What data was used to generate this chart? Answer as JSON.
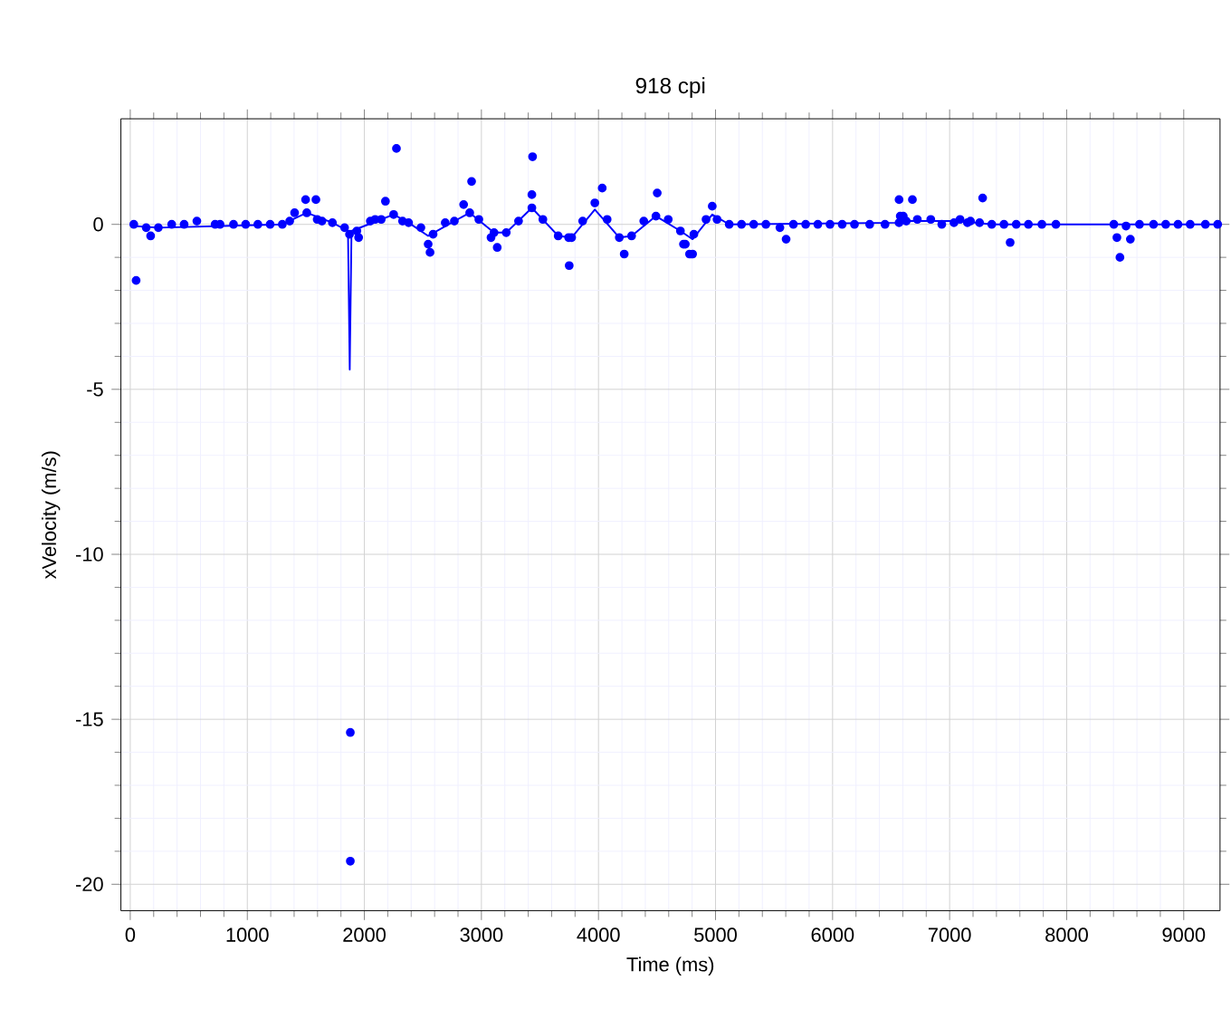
{
  "chart_data": {
    "type": "scatter",
    "subtitle": "918 cpi",
    "xlabel": "Time (ms)",
    "ylabel": "xVelocity (m/s)",
    "xlim": [
      -80,
      9310
    ],
    "ylim": [
      -20.8,
      3.2
    ],
    "xticks": [
      0,
      1000,
      2000,
      3000,
      4000,
      5000,
      6000,
      7000,
      8000,
      9000
    ],
    "yticks": [
      -20,
      -15,
      -10,
      -5,
      0
    ],
    "grid": true,
    "series": [
      {
        "type": "line",
        "marker": "none",
        "color": "#0000ff",
        "x": [
          30,
          240,
          1299,
          1508,
          1727,
          1860,
          1875,
          1890,
          2144,
          2250,
          2378,
          2545,
          2769,
          2900,
          3108,
          3212,
          3431,
          3656,
          3771,
          3969,
          4178,
          4283,
          4491,
          4700,
          4804,
          4972,
          5117,
          6568,
          6630,
          7089,
          7360,
          9290
        ],
        "values": [
          -0.05,
          -0.1,
          0,
          0.35,
          0.05,
          -0.2,
          -4.4,
          -0.2,
          0.15,
          0.3,
          0.05,
          -0.35,
          0.1,
          0.35,
          -0.25,
          -0.25,
          0.5,
          -0.35,
          -0.4,
          0.45,
          -0.4,
          -0.35,
          0.25,
          -0.2,
          -0.45,
          0.3,
          0,
          0.05,
          0.1,
          0.1,
          0,
          0
        ]
      },
      {
        "marker": "circle",
        "color": "#0000ff",
        "x": [
          30,
          50,
          136,
          174,
          240,
          354,
          460,
          569,
          725,
          767,
          882,
          986,
          1090,
          1195,
          1299,
          1362,
          1404,
          1498,
          1508,
          1586,
          1597,
          1638,
          1727,
          1831,
          1873,
          1880,
          1880,
          1936,
          1951,
          2051,
          2092,
          2144,
          2180,
          2250,
          2274,
          2326,
          2378,
          2483,
          2545,
          2561,
          2587,
          2691,
          2769,
          2848,
          2900,
          2916,
          2978,
          3082,
          3108,
          3135,
          3212,
          3317,
          3431,
          3431,
          3437,
          3525,
          3656,
          3745,
          3750,
          3771,
          3865,
          3969,
          4032,
          4074,
          4178,
          4220,
          4283,
          4387,
          4491,
          4502,
          4596,
          4700,
          4726,
          4742,
          4778,
          4804,
          4815,
          4919,
          4972,
          5013,
          5117,
          5222,
          5326,
          5430,
          5550,
          5603,
          5665,
          5770,
          5874,
          5978,
          6082,
          6187,
          6317,
          6448,
          6568,
          6568,
          6578,
          6604,
          6630,
          6682,
          6724,
          6839,
          6933,
          7037,
          7089,
          7152,
          7178,
          7256,
          7282,
          7360,
          7464,
          7517,
          7569,
          7673,
          7788,
          7908,
          8403,
          8429,
          8455,
          8507,
          8544,
          8622,
          8742,
          8846,
          8951,
          9055,
          9185,
          9290
        ],
        "values": [
          0,
          -1.7,
          -0.1,
          -0.35,
          -0.1,
          0,
          0,
          0.1,
          0,
          0,
          0,
          0,
          0,
          0,
          0,
          0.1,
          0.35,
          0.75,
          0.35,
          0.75,
          0.15,
          0.1,
          0.05,
          -0.1,
          -0.3,
          -15.4,
          -19.3,
          -0.2,
          -0.4,
          0.1,
          0.15,
          0.15,
          0.7,
          0.3,
          2.3,
          0.1,
          0.05,
          -0.1,
          -0.6,
          -0.85,
          -0.3,
          0.05,
          0.1,
          0.6,
          0.35,
          1.3,
          0.15,
          -0.4,
          -0.25,
          -0.7,
          -0.25,
          0.1,
          0.5,
          0.9,
          2.05,
          0.15,
          -0.35,
          -0.4,
          -1.25,
          -0.4,
          0.1,
          0.65,
          1.1,
          0.15,
          -0.4,
          -0.9,
          -0.35,
          0.1,
          0.25,
          0.95,
          0.15,
          -0.2,
          -0.6,
          -0.6,
          -0.9,
          -0.9,
          -0.3,
          0.15,
          0.55,
          0.15,
          0,
          0,
          0,
          0,
          -0.1,
          -0.45,
          0,
          0,
          0,
          0,
          0,
          0,
          0,
          0,
          0.05,
          0.75,
          0.25,
          0.25,
          0.1,
          0.75,
          0.15,
          0.15,
          0,
          0.05,
          0.15,
          0.05,
          0.1,
          0.05,
          0.8,
          0,
          0,
          -0.55,
          0,
          0,
          0,
          0,
          0,
          -0.4,
          -1.0,
          -0.05,
          -0.45,
          0,
          0,
          0,
          0,
          0,
          0,
          0
        ]
      }
    ]
  }
}
